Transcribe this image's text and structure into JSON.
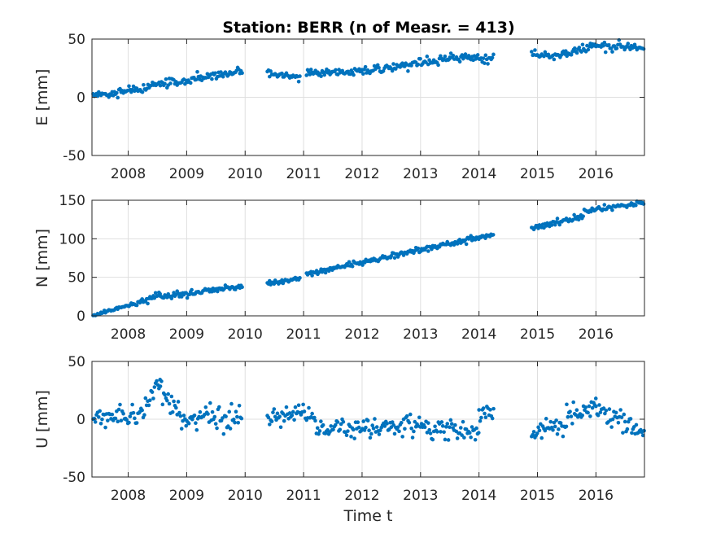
{
  "title": "Station: BERR (n of Measr. = 413)",
  "marker_color": "#0072bd",
  "chart_data": [
    {
      "type": "scatter",
      "id": "east",
      "ylabel": "E [mm]",
      "xlabel": "",
      "xlim": [
        2007.38,
        2016.83
      ],
      "ylim": [
        -50,
        50
      ],
      "yticks": [
        -50,
        0,
        50
      ],
      "xticks": [
        2008,
        2009,
        2010,
        2011,
        2012,
        2013,
        2014,
        2015,
        2016
      ],
      "grid": true,
      "segments": [
        {
          "x0": 2007.4,
          "x1": 2009.95,
          "y0": 1,
          "y1": 23,
          "noise": 2.0
        },
        {
          "x0": 2010.38,
          "x1": 2010.95,
          "y0": 21,
          "y1": 17,
          "noise": 1.6
        },
        {
          "x0": 2011.05,
          "x1": 2012.0,
          "y0": 21,
          "y1": 22,
          "noise": 1.5
        },
        {
          "x0": 2012.0,
          "x1": 2013.5,
          "y0": 22,
          "y1": 33,
          "noise": 1.8
        },
        {
          "x0": 2013.5,
          "x1": 2014.25,
          "y0": 34,
          "y1": 33,
          "noise": 1.6
        },
        {
          "x0": 2014.9,
          "x1": 2015.35,
          "y0": 38,
          "y1": 35,
          "noise": 1.6
        },
        {
          "x0": 2015.35,
          "x1": 2016.05,
          "y0": 35,
          "y1": 45,
          "noise": 1.8
        },
        {
          "x0": 2016.05,
          "x1": 2016.83,
          "y0": 45,
          "y1": 42,
          "noise": 2.0
        }
      ]
    },
    {
      "type": "scatter",
      "id": "north",
      "ylabel": "N [mm]",
      "xlabel": "",
      "xlim": [
        2007.38,
        2016.83
      ],
      "ylim": [
        0,
        150
      ],
      "yticks": [
        0,
        50,
        100,
        150
      ],
      "xticks": [
        2008,
        2009,
        2010,
        2011,
        2012,
        2013,
        2014,
        2015,
        2016
      ],
      "grid": true,
      "segments": [
        {
          "x0": 2007.4,
          "x1": 2008.2,
          "y0": 1,
          "y1": 17,
          "noise": 1.2
        },
        {
          "x0": 2008.2,
          "x1": 2008.55,
          "y0": 17,
          "y1": 28,
          "noise": 2.0
        },
        {
          "x0": 2008.55,
          "x1": 2009.95,
          "y0": 25,
          "y1": 38,
          "noise": 2.0
        },
        {
          "x0": 2010.38,
          "x1": 2010.95,
          "y0": 42,
          "y1": 49,
          "noise": 1.5
        },
        {
          "x0": 2011.05,
          "x1": 2012.5,
          "y0": 54,
          "y1": 78,
          "noise": 1.8
        },
        {
          "x0": 2012.5,
          "x1": 2014.25,
          "y0": 78,
          "y1": 105,
          "noise": 1.8
        },
        {
          "x0": 2014.9,
          "x1": 2015.8,
          "y0": 114,
          "y1": 130,
          "noise": 1.8
        },
        {
          "x0": 2015.8,
          "x1": 2016.83,
          "y0": 135,
          "y1": 148,
          "noise": 1.6
        }
      ]
    },
    {
      "type": "scatter",
      "id": "up",
      "ylabel": "U [mm]",
      "xlabel": "Time t",
      "xlim": [
        2007.38,
        2016.83
      ],
      "ylim": [
        -50,
        50
      ],
      "yticks": [
        -50,
        0,
        50
      ],
      "xticks": [
        2008,
        2009,
        2010,
        2011,
        2012,
        2013,
        2014,
        2015,
        2016
      ],
      "grid": true,
      "segments": [
        {
          "x0": 2007.4,
          "x1": 2008.2,
          "y0": 2,
          "y1": 3,
          "noise": 4.5
        },
        {
          "x0": 2008.2,
          "x1": 2008.55,
          "y0": 5,
          "y1": 30,
          "noise": 5.0
        },
        {
          "x0": 2008.55,
          "x1": 2009.0,
          "y0": 22,
          "y1": 0,
          "noise": 5.0
        },
        {
          "x0": 2009.0,
          "x1": 2009.95,
          "y0": 0,
          "y1": 2,
          "noise": 6.0
        },
        {
          "x0": 2010.38,
          "x1": 2011.2,
          "y0": 2,
          "y1": 3,
          "noise": 4.0
        },
        {
          "x0": 2011.2,
          "x1": 2012.5,
          "y0": -8,
          "y1": -10,
          "noise": 5.0
        },
        {
          "x0": 2012.5,
          "x1": 2014.0,
          "y0": -3,
          "y1": -12,
          "noise": 5.0
        },
        {
          "x0": 2014.0,
          "x1": 2014.25,
          "y0": 5,
          "y1": 10,
          "noise": 5.0
        },
        {
          "x0": 2014.9,
          "x1": 2015.5,
          "y0": -12,
          "y1": -8,
          "noise": 4.5
        },
        {
          "x0": 2015.5,
          "x1": 2016.0,
          "y0": 0,
          "y1": 15,
          "noise": 5.0
        },
        {
          "x0": 2016.0,
          "x1": 2016.83,
          "y0": 8,
          "y1": -10,
          "noise": 5.0
        }
      ]
    }
  ]
}
